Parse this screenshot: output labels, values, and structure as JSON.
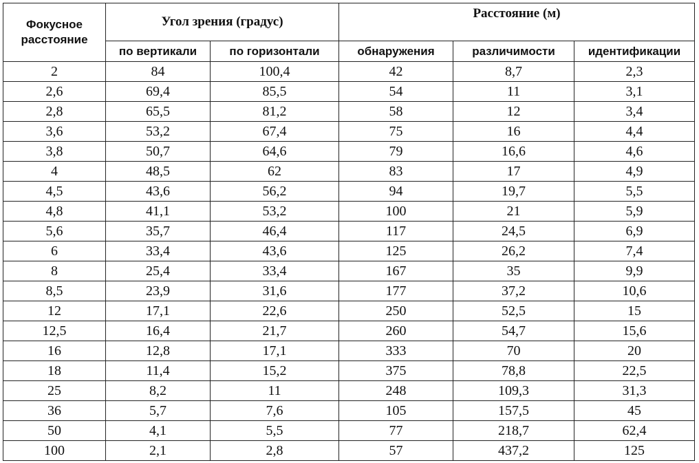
{
  "table": {
    "header": {
      "focal_length": "Фокусное расстояние",
      "view_angle": "Угол зрения (градус)",
      "distance": "Расстояние (м)",
      "vertical": "по вертикали",
      "horizontal": "по горизонтали",
      "detection": "обнаружения",
      "distinguishability": "различимости",
      "identification": "идентификации"
    },
    "rows": [
      {
        "focal": "2",
        "vertical": "84",
        "horizontal": "100,4",
        "detection": "42",
        "distinguishability": "8,7",
        "identification": "2,3"
      },
      {
        "focal": "2,6",
        "vertical": "69,4",
        "horizontal": "85,5",
        "detection": "54",
        "distinguishability": "11",
        "identification": "3,1"
      },
      {
        "focal": "2,8",
        "vertical": "65,5",
        "horizontal": "81,2",
        "detection": "58",
        "distinguishability": "12",
        "identification": "3,4"
      },
      {
        "focal": "3,6",
        "vertical": "53,2",
        "horizontal": "67,4",
        "detection": "75",
        "distinguishability": "16",
        "identification": "4,4"
      },
      {
        "focal": "3,8",
        "vertical": "50,7",
        "horizontal": "64,6",
        "detection": "79",
        "distinguishability": "16,6",
        "identification": "4,6"
      },
      {
        "focal": "4",
        "vertical": "48,5",
        "horizontal": "62",
        "detection": "83",
        "distinguishability": "17",
        "identification": "4,9"
      },
      {
        "focal": "4,5",
        "vertical": "43,6",
        "horizontal": "56,2",
        "detection": "94",
        "distinguishability": "19,7",
        "identification": "5,5"
      },
      {
        "focal": "4,8",
        "vertical": "41,1",
        "horizontal": "53,2",
        "detection": "100",
        "distinguishability": "21",
        "identification": "5,9"
      },
      {
        "focal": "5,6",
        "vertical": "35,7",
        "horizontal": "46,4",
        "detection": "117",
        "distinguishability": "24,5",
        "identification": "6,9"
      },
      {
        "focal": "6",
        "vertical": "33,4",
        "horizontal": "43,6",
        "detection": "125",
        "distinguishability": "26,2",
        "identification": "7,4"
      },
      {
        "focal": "8",
        "vertical": "25,4",
        "horizontal": "33,4",
        "detection": "167",
        "distinguishability": "35",
        "identification": "9,9"
      },
      {
        "focal": "8,5",
        "vertical": "23,9",
        "horizontal": "31,6",
        "detection": "177",
        "distinguishability": "37,2",
        "identification": "10,6"
      },
      {
        "focal": "12",
        "vertical": "17,1",
        "horizontal": "22,6",
        "detection": "250",
        "distinguishability": "52,5",
        "identification": "15"
      },
      {
        "focal": "12,5",
        "vertical": "16,4",
        "horizontal": "21,7",
        "detection": "260",
        "distinguishability": "54,7",
        "identification": "15,6"
      },
      {
        "focal": "16",
        "vertical": "12,8",
        "horizontal": "17,1",
        "detection": "333",
        "distinguishability": "70",
        "identification": "20"
      },
      {
        "focal": "18",
        "vertical": "11,4",
        "horizontal": "15,2",
        "detection": "375",
        "distinguishability": "78,8",
        "identification": "22,5"
      },
      {
        "focal": "25",
        "vertical": "8,2",
        "horizontal": "11",
        "detection": "248",
        "distinguishability": "109,3",
        "identification": "31,3"
      },
      {
        "focal": "36",
        "vertical": "5,7",
        "horizontal": "7,6",
        "detection": "105",
        "distinguishability": "157,5",
        "identification": "45"
      },
      {
        "focal": "50",
        "vertical": "4,1",
        "horizontal": "5,5",
        "detection": "77",
        "distinguishability": "218,7",
        "identification": "62,4"
      },
      {
        "focal": "100",
        "vertical": "2,1",
        "horizontal": "2,8",
        "detection": "57",
        "distinguishability": "437,2",
        "identification": "125"
      }
    ]
  }
}
